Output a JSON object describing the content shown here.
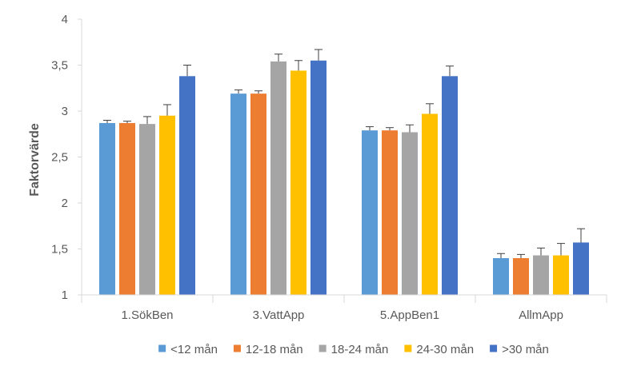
{
  "chart_data": {
    "type": "bar",
    "categories": [
      "1.SökBen",
      "3.VattApp",
      "5.AppBen1",
      "AllmApp"
    ],
    "series": [
      {
        "name": "<12 mån",
        "color": "#5B9BD5",
        "values": [
          2.87,
          3.19,
          2.79,
          1.4
        ],
        "error": [
          0.03,
          0.04,
          0.04,
          0.05
        ]
      },
      {
        "name": "12-18 mån",
        "color": "#ED7D31",
        "values": [
          2.87,
          3.19,
          2.79,
          1.4
        ],
        "error": [
          0.02,
          0.03,
          0.03,
          0.04
        ]
      },
      {
        "name": "18-24 mån",
        "color": "#A5A5A5",
        "values": [
          2.86,
          3.54,
          2.77,
          1.43
        ],
        "error": [
          0.08,
          0.08,
          0.08,
          0.08
        ]
      },
      {
        "name": "24-30 mån",
        "color": "#FFC000",
        "values": [
          2.95,
          3.44,
          2.97,
          1.43
        ],
        "error": [
          0.12,
          0.11,
          0.11,
          0.13
        ]
      },
      {
        "name": ">30 mån",
        "color": "#4472C4",
        "values": [
          3.38,
          3.55,
          3.38,
          1.57
        ],
        "error": [
          0.12,
          0.12,
          0.11,
          0.15
        ]
      }
    ],
    "xlabel": "",
    "ylabel": "Faktorvärde",
    "ylim": [
      1,
      4
    ],
    "yticks": [
      "1",
      "1,5",
      "2",
      "2,5",
      "3",
      "3,5",
      "4"
    ],
    "grid": false,
    "legend_position": "bottom",
    "error_bars": true
  }
}
